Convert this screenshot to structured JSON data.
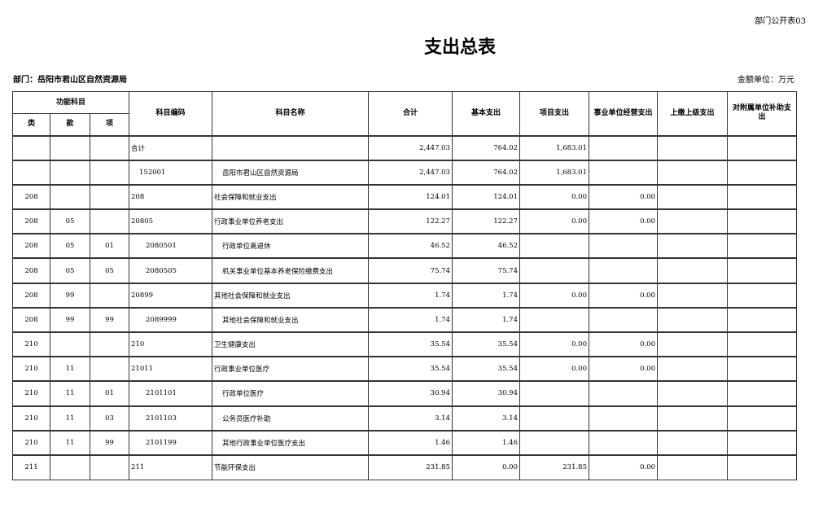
{
  "doc_code": "部门公开表03",
  "title": "支出总表",
  "department": "部门：岳阳市君山区自然资源局",
  "unit": "金额单位：万元",
  "headers": {
    "func": "功能科目",
    "lei": "类",
    "kuan": "款",
    "xiang": "项",
    "code": "科目编码",
    "name": "科目名称",
    "total": "合计",
    "basic": "基本支出",
    "project": "项目支出",
    "business": "事业单位经营支出",
    "upper": "上缴上级支出",
    "subsidy": "对附属单位补助支出"
  },
  "rows": [
    {
      "lei": "",
      "kuan": "",
      "xiang": "",
      "code": "合计",
      "name": "",
      "total": "2,447.03",
      "basic": "764.02",
      "project": "1,683.01",
      "business": "",
      "upper": "",
      "subsidy": "",
      "level": 0
    },
    {
      "lei": "",
      "kuan": "",
      "xiang": "",
      "code": "152001",
      "name": "岳阳市君山区自然资源局",
      "total": "2,447.03",
      "basic": "764.02",
      "project": "1,683.01",
      "business": "",
      "upper": "",
      "subsidy": "",
      "level": 1
    },
    {
      "lei": "208",
      "kuan": "",
      "xiang": "",
      "code": "208",
      "name": "社会保障和就业支出",
      "total": "124.01",
      "basic": "124.01",
      "project": "0.00",
      "business": "0.00",
      "upper": "",
      "subsidy": "",
      "level": 0
    },
    {
      "lei": "208",
      "kuan": "05",
      "xiang": "",
      "code": "20805",
      "name": "行政事业单位养老支出",
      "total": "122.27",
      "basic": "122.27",
      "project": "0.00",
      "business": "0.00",
      "upper": "",
      "subsidy": "",
      "level": 0
    },
    {
      "lei": "208",
      "kuan": "05",
      "xiang": "01",
      "code": "2080501",
      "name": "行政单位离退休",
      "total": "46.52",
      "basic": "46.52",
      "project": "",
      "business": "",
      "upper": "",
      "subsidy": "",
      "level": 2
    },
    {
      "lei": "208",
      "kuan": "05",
      "xiang": "05",
      "code": "2080505",
      "name": "机关事业单位基本养老保险缴费支出",
      "total": "75.74",
      "basic": "75.74",
      "project": "",
      "business": "",
      "upper": "",
      "subsidy": "",
      "level": 2
    },
    {
      "lei": "208",
      "kuan": "99",
      "xiang": "",
      "code": "20899",
      "name": "其他社会保障和就业支出",
      "total": "1.74",
      "basic": "1.74",
      "project": "0.00",
      "business": "0.00",
      "upper": "",
      "subsidy": "",
      "level": 0
    },
    {
      "lei": "208",
      "kuan": "99",
      "xiang": "99",
      "code": "2089999",
      "name": "其他社会保障和就业支出",
      "total": "1.74",
      "basic": "1.74",
      "project": "",
      "business": "",
      "upper": "",
      "subsidy": "",
      "level": 2
    },
    {
      "lei": "210",
      "kuan": "",
      "xiang": "",
      "code": "210",
      "name": "卫生健康支出",
      "total": "35.54",
      "basic": "35.54",
      "project": "0.00",
      "business": "0.00",
      "upper": "",
      "subsidy": "",
      "level": 0
    },
    {
      "lei": "210",
      "kuan": "11",
      "xiang": "",
      "code": "21011",
      "name": "行政事业单位医疗",
      "total": "35.54",
      "basic": "35.54",
      "project": "0.00",
      "business": "0.00",
      "upper": "",
      "subsidy": "",
      "level": 0
    },
    {
      "lei": "210",
      "kuan": "11",
      "xiang": "01",
      "code": "2101101",
      "name": "行政单位医疗",
      "total": "30.94",
      "basic": "30.94",
      "project": "",
      "business": "",
      "upper": "",
      "subsidy": "",
      "level": 2
    },
    {
      "lei": "210",
      "kuan": "11",
      "xiang": "03",
      "code": "2101103",
      "name": "公务员医疗补助",
      "total": "3.14",
      "basic": "3.14",
      "project": "",
      "business": "",
      "upper": "",
      "subsidy": "",
      "level": 2
    },
    {
      "lei": "210",
      "kuan": "11",
      "xiang": "99",
      "code": "2101199",
      "name": "其他行政事业单位医疗支出",
      "total": "1.46",
      "basic": "1.46",
      "project": "",
      "business": "",
      "upper": "",
      "subsidy": "",
      "level": 2
    },
    {
      "lei": "211",
      "kuan": "",
      "xiang": "",
      "code": "211",
      "name": "节能环保支出",
      "total": "231.85",
      "basic": "0.00",
      "project": "231.85",
      "business": "0.00",
      "upper": "",
      "subsidy": "",
      "level": 0
    }
  ]
}
